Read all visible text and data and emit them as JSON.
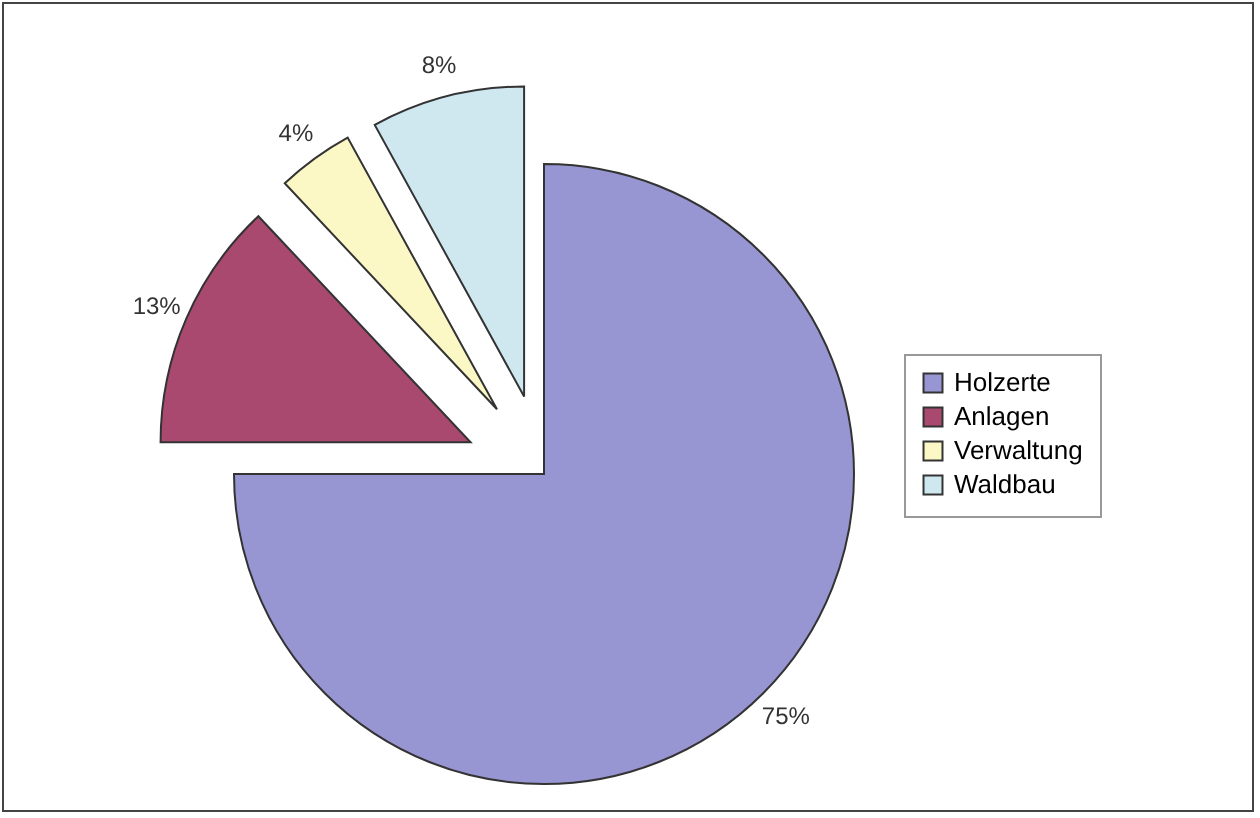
{
  "chart_data": {
    "type": "pie",
    "categories": [
      "Holzerte",
      "Anlagen",
      "Verwaltung",
      "Waldbau"
    ],
    "values": [
      75,
      13,
      4,
      8
    ],
    "colors": [
      "#9896d2",
      "#a9496f",
      "#fcf8c6",
      "#cfe8f0"
    ],
    "value_labels": [
      "75%",
      "13%",
      "4%",
      "8%"
    ],
    "legend": "right"
  }
}
